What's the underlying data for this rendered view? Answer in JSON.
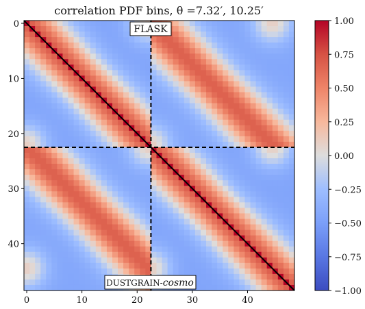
{
  "chart_data": {
    "type": "heatmap",
    "title": "correlation PDF bins, θ =7.32′, 10.25′",
    "size": 49,
    "block_split": 22.5,
    "xticks": [
      0,
      10,
      20,
      30,
      40
    ],
    "yticks": [
      0,
      10,
      20,
      30,
      40
    ],
    "xtick_labels": [
      "0",
      "10",
      "20",
      "30",
      "40"
    ],
    "ytick_labels": [
      "0",
      "10",
      "20",
      "30",
      "40"
    ],
    "colorbar": {
      "range": [
        -1.0,
        1.0
      ],
      "ticks": [
        1.0,
        0.75,
        0.5,
        0.25,
        0.0,
        -0.25,
        -0.5,
        -0.75,
        -1.0
      ],
      "tick_labels": [
        "1.00",
        "0.75",
        "0.50",
        "0.25",
        "0.00",
        "−0.25",
        "−0.50",
        "−0.75",
        "−1.00"
      ],
      "colormap": "coolwarm"
    },
    "annotations": {
      "top_box": "FLASK",
      "bottom_box_main": "DUSTGRAIN-",
      "bottom_box_italic": "cosmo"
    },
    "grid": false
  },
  "colors": {
    "cold": "#3b4cc0",
    "neutral": "#dddddd",
    "warm": "#b40426",
    "diagonal": "#000000",
    "divider": "#000000"
  }
}
